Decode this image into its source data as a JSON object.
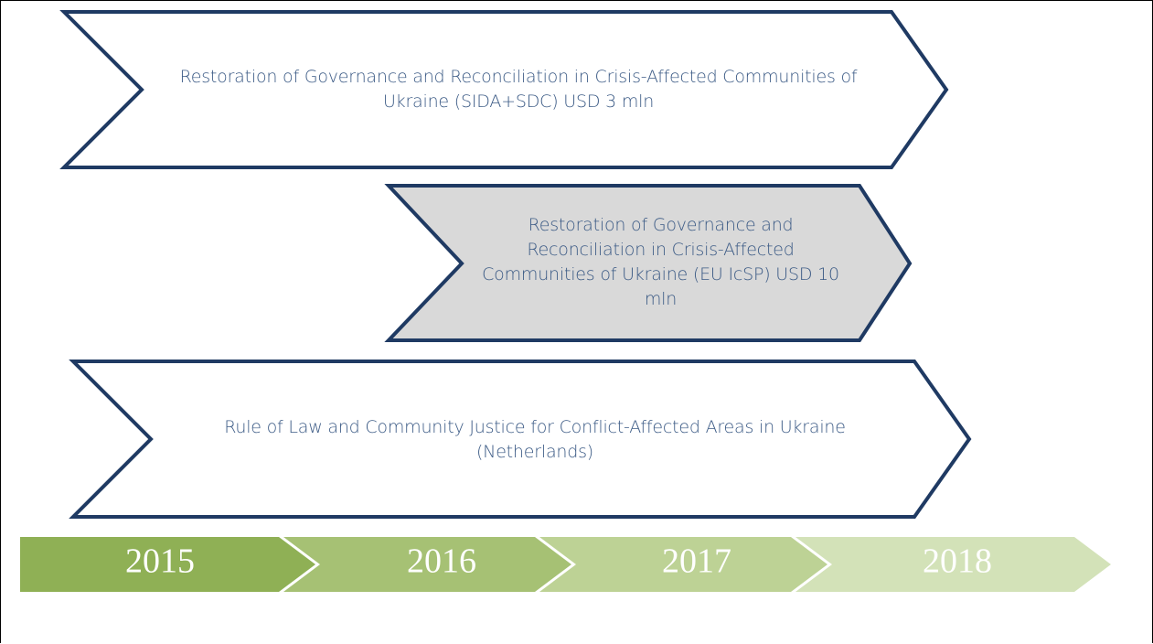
{
  "projects": [
    {
      "label": "Restoration of Governance and Reconciliation in Crisis-Affected Communities of Ukraine (SIDA+SDC) USD 3 mln"
    },
    {
      "label": "Restoration of Governance and Reconciliation in Crisis-Affected Communities of Ukraine (EU IcSP) USD 10 mln"
    },
    {
      "label": "Rule of Law and Community Justice for Conflict-Affected Areas in Ukraine (Netherlands)"
    }
  ],
  "timeline": {
    "years": [
      "2015",
      "2016",
      "2017",
      "2018"
    ]
  }
}
